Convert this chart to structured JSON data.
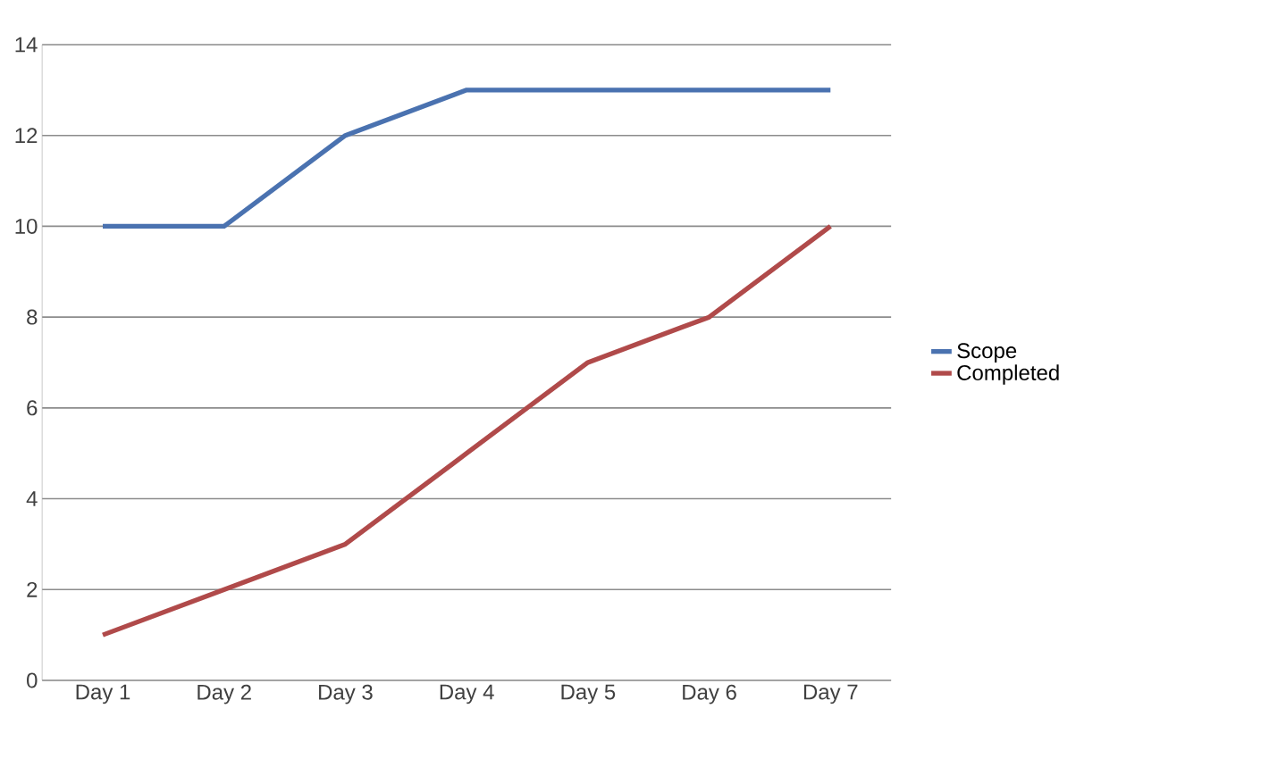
{
  "chart_data": {
    "type": "line",
    "categories": [
      "Day 1",
      "Day 2",
      "Day 3",
      "Day 4",
      "Day 5",
      "Day 6",
      "Day 7"
    ],
    "series": [
      {
        "name": "Scope",
        "color": "#4a72b0",
        "values": [
          10,
          10,
          12,
          13,
          13,
          13,
          13
        ]
      },
      {
        "name": "Completed",
        "color": "#b04a4a",
        "values": [
          1,
          2,
          3,
          5,
          7,
          8,
          10
        ]
      }
    ],
    "ylim": [
      0,
      14
    ],
    "yticks": [
      0,
      2,
      4,
      6,
      8,
      10,
      12,
      14
    ],
    "grid": "y",
    "legend": "right",
    "marker": "none",
    "line_style": "solid"
  }
}
